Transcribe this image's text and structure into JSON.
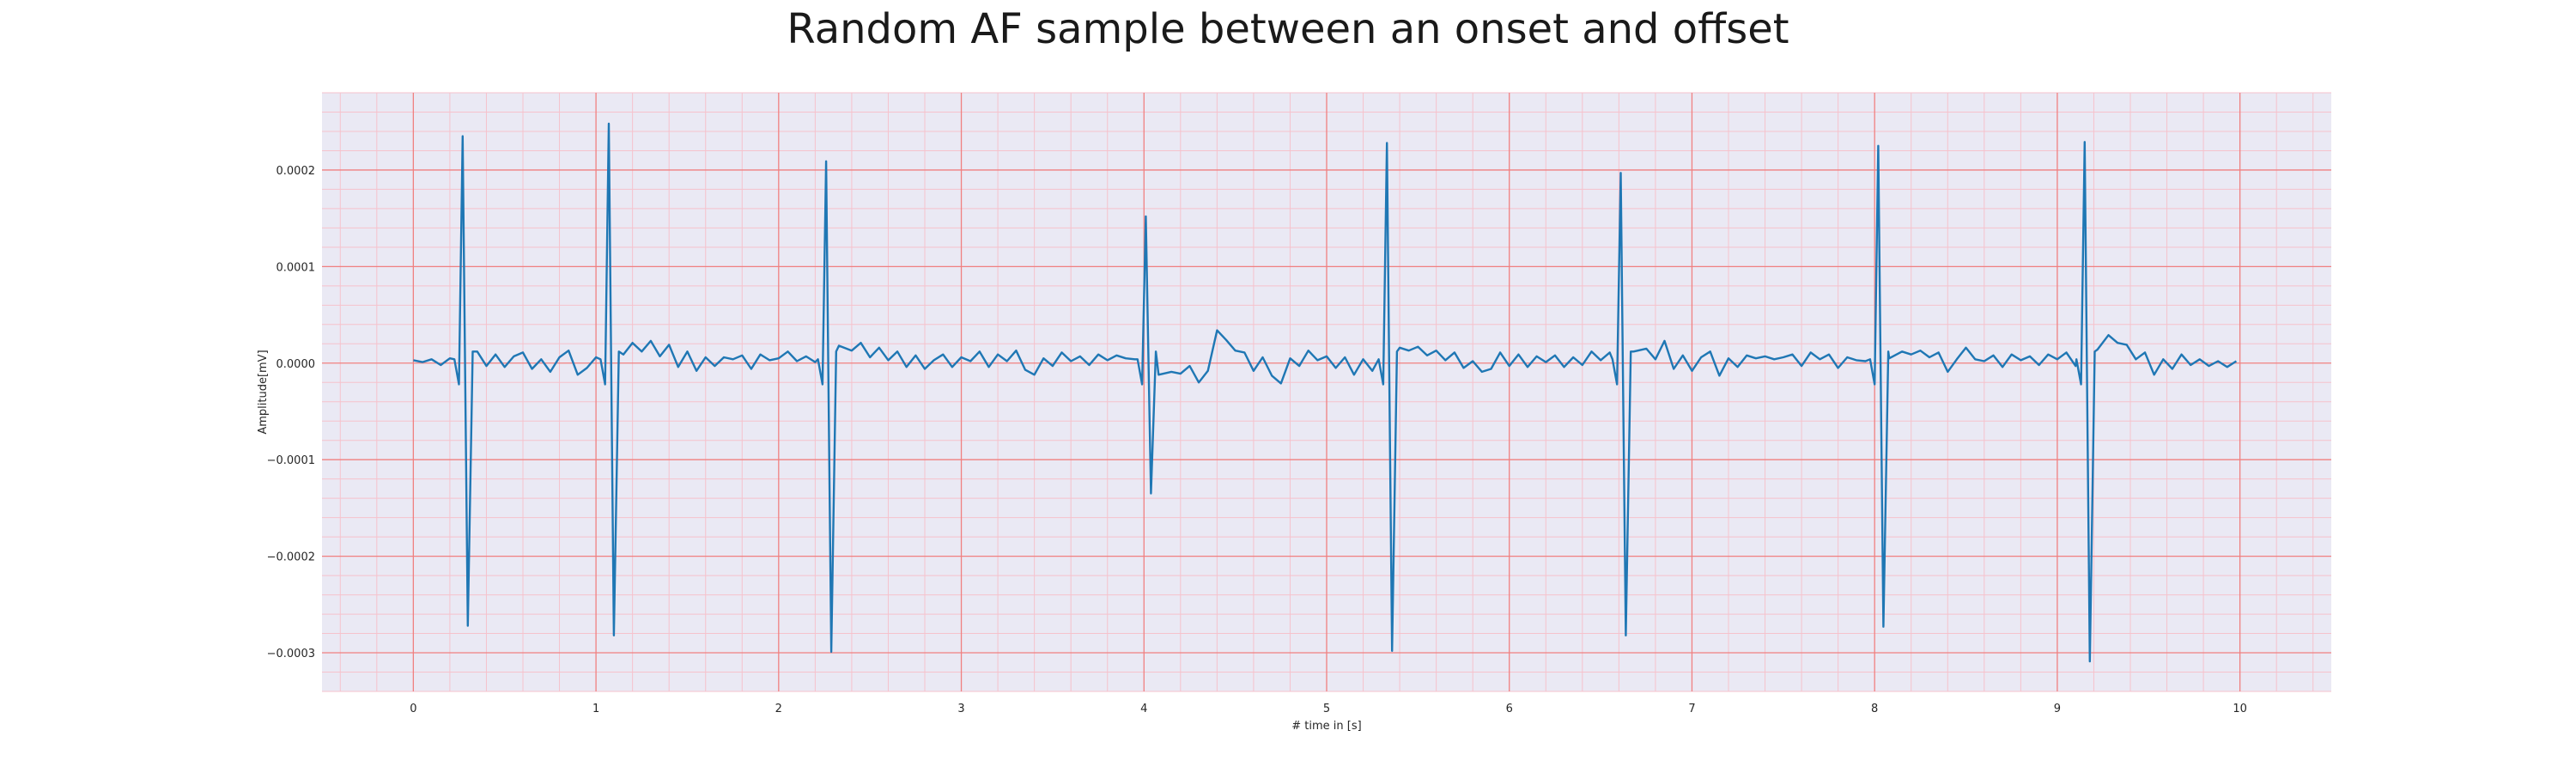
{
  "chart_data": {
    "type": "line",
    "title": "Random AF sample between an onset and offset",
    "xlabel": "# time in [s]",
    "ylabel": "Amplitude[mV]",
    "xlim": [
      -0.5,
      10.5
    ],
    "ylim": [
      -0.00034,
      0.00028
    ],
    "xticks": [
      0,
      1,
      2,
      3,
      4,
      5,
      6,
      7,
      8,
      9,
      10
    ],
    "xtick_labels": [
      "0",
      "1",
      "2",
      "3",
      "4",
      "5",
      "6",
      "7",
      "8",
      "9",
      "10"
    ],
    "yticks": [
      -0.0003,
      -0.0002,
      -0.0001,
      0.0,
      0.0001,
      0.0002
    ],
    "ytick_labels": [
      "−0.0003",
      "−0.0002",
      "−0.0001",
      "0.0000",
      "0.0001",
      "0.0002"
    ],
    "grid": true,
    "minor_grid": true,
    "colors": {
      "line": "#1f77b4",
      "plot_background": "#eae9f4",
      "major_grid": "#f08080",
      "minor_grid": "#f6c2cc"
    },
    "series": [
      {
        "beats": [
          {
            "t": 0.27,
            "peak": 0.000235,
            "trough": -0.000272
          },
          {
            "t": 1.07,
            "peak": 0.000248,
            "trough": -0.000282
          },
          {
            "t": 2.26,
            "peak": 0.000209,
            "trough": -0.000299
          },
          {
            "t": 4.01,
            "peak": 0.000152,
            "trough": -0.000135
          },
          {
            "t": 5.33,
            "peak": 0.000228,
            "trough": -0.000298
          },
          {
            "t": 6.61,
            "peak": 0.000197,
            "trough": -0.000282
          },
          {
            "t": 8.02,
            "peak": 0.000225,
            "trough": -0.000273
          },
          {
            "t": 9.15,
            "peak": 0.000229,
            "trough": -0.000309
          }
        ],
        "baseline_points": [
          [
            0.0,
            3e-06
          ],
          [
            0.05,
            1e-06
          ],
          [
            0.1,
            4e-06
          ],
          [
            0.15,
            -2e-06
          ],
          [
            0.2,
            5e-06
          ],
          [
            0.35,
            1.2e-05
          ],
          [
            0.4,
            -3e-06
          ],
          [
            0.45,
            9e-06
          ],
          [
            0.5,
            -4e-06
          ],
          [
            0.55,
            7e-06
          ],
          [
            0.6,
            1.1e-05
          ],
          [
            0.65,
            -6e-06
          ],
          [
            0.7,
            4e-06
          ],
          [
            0.75,
            -9e-06
          ],
          [
            0.8,
            6e-06
          ],
          [
            0.85,
            1.3e-05
          ],
          [
            0.9,
            -1.2e-05
          ],
          [
            0.95,
            -5e-06
          ],
          [
            1.0,
            6e-06
          ],
          [
            1.15,
            9e-06
          ],
          [
            1.2,
            2.1e-05
          ],
          [
            1.25,
            1.2e-05
          ],
          [
            1.3,
            2.3e-05
          ],
          [
            1.35,
            7e-06
          ],
          [
            1.4,
            1.9e-05
          ],
          [
            1.45,
            -4e-06
          ],
          [
            1.5,
            1.2e-05
          ],
          [
            1.55,
            -8e-06
          ],
          [
            1.6,
            6e-06
          ],
          [
            1.65,
            -3e-06
          ],
          [
            1.7,
            6e-06
          ],
          [
            1.75,
            4e-06
          ],
          [
            1.8,
            8e-06
          ],
          [
            1.85,
            -6e-06
          ],
          [
            1.9,
            9e-06
          ],
          [
            1.95,
            3e-06
          ],
          [
            2.0,
            5e-06
          ],
          [
            2.05,
            1.2e-05
          ],
          [
            2.1,
            2e-06
          ],
          [
            2.15,
            7e-06
          ],
          [
            2.2,
            1e-06
          ],
          [
            2.33,
            1.8e-05
          ],
          [
            2.4,
            1.3e-05
          ],
          [
            2.45,
            2.1e-05
          ],
          [
            2.5,
            6e-06
          ],
          [
            2.55,
            1.6e-05
          ],
          [
            2.6,
            3e-06
          ],
          [
            2.65,
            1.2e-05
          ],
          [
            2.7,
            -4e-06
          ],
          [
            2.75,
            8e-06
          ],
          [
            2.8,
            -6e-06
          ],
          [
            2.85,
            3e-06
          ],
          [
            2.9,
            9e-06
          ],
          [
            2.95,
            -4e-06
          ],
          [
            3.0,
            6e-06
          ],
          [
            3.05,
            2e-06
          ],
          [
            3.1,
            1.2e-05
          ],
          [
            3.15,
            -4e-06
          ],
          [
            3.2,
            9e-06
          ],
          [
            3.25,
            2e-06
          ],
          [
            3.3,
            1.3e-05
          ],
          [
            3.35,
            -7e-06
          ],
          [
            3.4,
            -1.2e-05
          ],
          [
            3.45,
            5e-06
          ],
          [
            3.5,
            -3e-06
          ],
          [
            3.55,
            1.1e-05
          ],
          [
            3.6,
            2e-06
          ],
          [
            3.65,
            7e-06
          ],
          [
            3.7,
            -2e-06
          ],
          [
            3.75,
            9e-06
          ],
          [
            3.8,
            3e-06
          ],
          [
            3.85,
            8e-06
          ],
          [
            3.9,
            5e-06
          ],
          [
            3.95,
            4e-06
          ],
          [
            4.08,
            -1.2e-05
          ],
          [
            4.15,
            -9e-06
          ],
          [
            4.2,
            -1.1e-05
          ],
          [
            4.25,
            -3e-06
          ],
          [
            4.3,
            -2e-05
          ],
          [
            4.35,
            -8e-06
          ],
          [
            4.4,
            3.4e-05
          ],
          [
            4.45,
            2.4e-05
          ],
          [
            4.5,
            1.3e-05
          ],
          [
            4.55,
            1.1e-05
          ],
          [
            4.6,
            -8e-06
          ],
          [
            4.65,
            6e-06
          ],
          [
            4.7,
            -1.3e-05
          ],
          [
            4.75,
            -2.1e-05
          ],
          [
            4.8,
            5e-06
          ],
          [
            4.85,
            -3e-06
          ],
          [
            4.9,
            1.3e-05
          ],
          [
            4.95,
            3e-06
          ],
          [
            5.0,
            7e-06
          ],
          [
            5.05,
            -5e-06
          ],
          [
            5.1,
            6e-06
          ],
          [
            5.15,
            -1.2e-05
          ],
          [
            5.2,
            4e-06
          ],
          [
            5.25,
            -8e-06
          ],
          [
            5.4,
            1.6e-05
          ],
          [
            5.45,
            1.3e-05
          ],
          [
            5.5,
            1.7e-05
          ],
          [
            5.55,
            8e-06
          ],
          [
            5.6,
            1.3e-05
          ],
          [
            5.65,
            3e-06
          ],
          [
            5.7,
            1.1e-05
          ],
          [
            5.75,
            -5e-06
          ],
          [
            5.8,
            2e-06
          ],
          [
            5.85,
            -9e-06
          ],
          [
            5.9,
            -6e-06
          ],
          [
            5.95,
            1.1e-05
          ],
          [
            6.0,
            -3e-06
          ],
          [
            6.05,
            9e-06
          ],
          [
            6.1,
            -4e-06
          ],
          [
            6.15,
            7e-06
          ],
          [
            6.2,
            1e-06
          ],
          [
            6.25,
            8e-06
          ],
          [
            6.3,
            -4e-06
          ],
          [
            6.35,
            6e-06
          ],
          [
            6.4,
            -2e-06
          ],
          [
            6.45,
            1.2e-05
          ],
          [
            6.5,
            3e-06
          ],
          [
            6.55,
            1.1e-05
          ],
          [
            6.68,
            1.2e-05
          ],
          [
            6.75,
            1.5e-05
          ],
          [
            6.8,
            4e-06
          ],
          [
            6.85,
            2.3e-05
          ],
          [
            6.9,
            -6e-06
          ],
          [
            6.95,
            8e-06
          ],
          [
            7.0,
            -8e-06
          ],
          [
            7.05,
            6e-06
          ],
          [
            7.1,
            1.2e-05
          ],
          [
            7.15,
            -1.3e-05
          ],
          [
            7.2,
            5e-06
          ],
          [
            7.25,
            -4e-06
          ],
          [
            7.3,
            8e-06
          ],
          [
            7.35,
            5e-06
          ],
          [
            7.4,
            7e-06
          ],
          [
            7.45,
            4e-06
          ],
          [
            7.5,
            6e-06
          ],
          [
            7.55,
            9e-06
          ],
          [
            7.6,
            -3e-06
          ],
          [
            7.65,
            1.1e-05
          ],
          [
            7.7,
            4e-06
          ],
          [
            7.75,
            9e-06
          ],
          [
            7.8,
            -5e-06
          ],
          [
            7.85,
            6e-06
          ],
          [
            7.9,
            3e-06
          ],
          [
            7.95,
            2e-06
          ],
          [
            8.08,
            5e-06
          ],
          [
            8.15,
            1.2e-05
          ],
          [
            8.2,
            9e-06
          ],
          [
            8.25,
            1.3e-05
          ],
          [
            8.3,
            6e-06
          ],
          [
            8.35,
            1.1e-05
          ],
          [
            8.4,
            -9e-06
          ],
          [
            8.45,
            4e-06
          ],
          [
            8.5,
            1.6e-05
          ],
          [
            8.55,
            4e-06
          ],
          [
            8.6,
            2e-06
          ],
          [
            8.65,
            8e-06
          ],
          [
            8.7,
            -4e-06
          ],
          [
            8.75,
            9e-06
          ],
          [
            8.8,
            3e-06
          ],
          [
            8.85,
            7e-06
          ],
          [
            8.9,
            -2e-06
          ],
          [
            8.95,
            9e-06
          ],
          [
            9.0,
            4e-06
          ],
          [
            9.05,
            1.1e-05
          ],
          [
            9.1,
            -3e-06
          ],
          [
            9.22,
            1.4e-05
          ],
          [
            9.28,
            2.9e-05
          ],
          [
            9.33,
            2.1e-05
          ],
          [
            9.38,
            1.9e-05
          ],
          [
            9.43,
            4e-06
          ],
          [
            9.48,
            1.1e-05
          ],
          [
            9.53,
            -1.2e-05
          ],
          [
            9.58,
            4e-06
          ],
          [
            9.63,
            -6e-06
          ],
          [
            9.68,
            9e-06
          ],
          [
            9.73,
            -2e-06
          ],
          [
            9.78,
            4e-06
          ],
          [
            9.83,
            -3e-06
          ],
          [
            9.88,
            2e-06
          ],
          [
            9.93,
            -4e-06
          ],
          [
            9.98,
            2e-06
          ]
        ]
      }
    ]
  }
}
